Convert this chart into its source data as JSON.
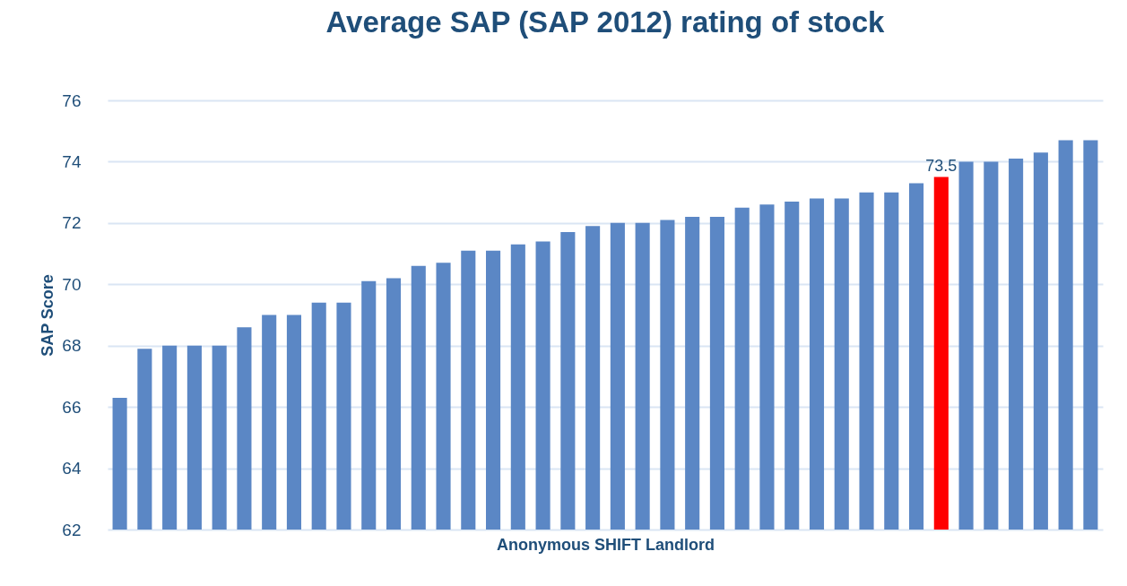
{
  "chart_data": {
    "type": "bar",
    "title": "Average SAP (SAP 2012) rating of stock",
    "xlabel": "Anonymous SHIFT Landlord",
    "ylabel": "SAP Score",
    "categories": [
      null,
      null,
      null,
      null,
      null,
      null,
      null,
      null,
      null,
      null,
      null,
      null,
      null,
      null,
      null,
      null,
      null,
      null,
      null,
      null,
      null,
      null,
      null,
      null,
      null,
      null,
      null,
      null,
      null,
      null,
      null,
      null,
      null,
      null,
      null,
      null,
      null,
      null,
      null,
      null
    ],
    "values": [
      66.3,
      67.9,
      68.0,
      68.0,
      68.0,
      68.6,
      69.0,
      69.0,
      69.4,
      69.4,
      70.1,
      70.2,
      70.6,
      70.7,
      71.1,
      71.1,
      71.3,
      71.4,
      71.7,
      71.9,
      72.0,
      72.0,
      72.1,
      72.2,
      72.2,
      72.5,
      72.6,
      72.7,
      72.8,
      72.8,
      73.0,
      73.0,
      73.3,
      73.5,
      74.0,
      74.0,
      74.1,
      74.3,
      74.7,
      74.7
    ],
    "colors": [
      "#5b87c5",
      "#5b87c5",
      "#5b87c5",
      "#5b87c5",
      "#5b87c5",
      "#5b87c5",
      "#5b87c5",
      "#5b87c5",
      "#5b87c5",
      "#5b87c5",
      "#5b87c5",
      "#5b87c5",
      "#5b87c5",
      "#5b87c5",
      "#5b87c5",
      "#5b87c5",
      "#5b87c5",
      "#5b87c5",
      "#5b87c5",
      "#5b87c5",
      "#5b87c5",
      "#5b87c5",
      "#5b87c5",
      "#5b87c5",
      "#5b87c5",
      "#5b87c5",
      "#5b87c5",
      "#5b87c5",
      "#5b87c5",
      "#5b87c5",
      "#5b87c5",
      "#5b87c5",
      "#5b87c5",
      "#ff0000",
      "#5b87c5",
      "#5b87c5",
      "#5b87c5",
      "#5b87c5",
      "#5b87c5",
      "#5b87c5"
    ],
    "value_labels": [
      null,
      null,
      null,
      null,
      null,
      null,
      null,
      null,
      null,
      null,
      null,
      null,
      null,
      null,
      null,
      null,
      null,
      null,
      null,
      null,
      null,
      null,
      null,
      null,
      null,
      null,
      null,
      null,
      null,
      null,
      null,
      null,
      null,
      "73.5",
      null,
      null,
      null,
      null,
      null,
      null
    ],
    "ylim": [
      62,
      76
    ],
    "yticks": [
      62,
      64,
      66,
      68,
      70,
      72,
      74,
      76
    ],
    "grid": "y",
    "tick_labels": "y"
  }
}
